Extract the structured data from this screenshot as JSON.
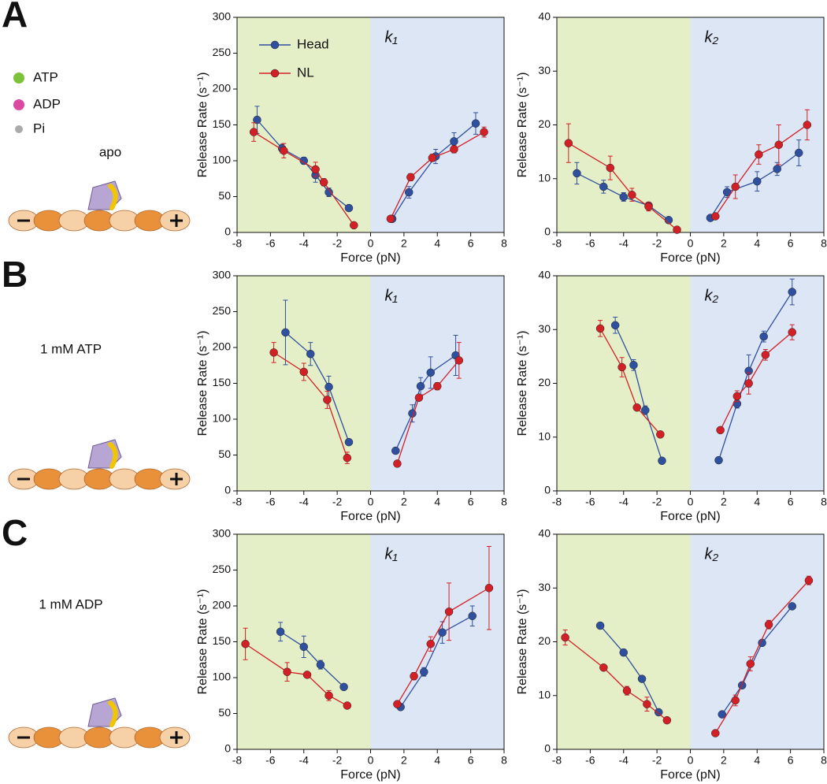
{
  "panels": [
    {
      "label": "A",
      "condition": "apo"
    },
    {
      "label": "B",
      "condition": "1 mM ATP"
    },
    {
      "label": "C",
      "condition": "1 mM ADP"
    }
  ],
  "key": [
    "ATP",
    "ADP",
    "Pi"
  ],
  "chart_data": [
    {
      "type": "line",
      "title": "k₁",
      "xlabel": "Force (pN)",
      "ylabel": "Release Rate (s⁻¹)",
      "xlim": [
        -8,
        8
      ],
      "xticks": [
        -8,
        -6,
        -4,
        -2,
        0,
        2,
        4,
        6,
        8
      ],
      "ylim": [
        0,
        300
      ],
      "yticks": [
        0,
        50,
        100,
        150,
        200,
        250,
        300
      ],
      "shade_colors": [
        "#e5efc7",
        "#dce6f4"
      ],
      "legend": "upper left",
      "series": [
        {
          "name": "Head",
          "color": "#2f4f9f",
          "x": [
            -6.8,
            -5.3,
            -4.0,
            -3.3,
            -2.5,
            -1.3,
            null,
            1.3,
            2.3,
            3.9,
            5.0,
            6.3
          ],
          "values": [
            157,
            117,
            100,
            80,
            56,
            34,
            null,
            19,
            56,
            106,
            127,
            152
          ],
          "errors": [
            19,
            6,
            5,
            10,
            6,
            2,
            null,
            2,
            8,
            10,
            12,
            15
          ]
        },
        {
          "name": "NL",
          "color": "#d31f26",
          "x": [
            -7.0,
            -5.2,
            -3.3,
            -2.8,
            -1.0,
            null,
            1.2,
            2.4,
            3.7,
            5.0,
            6.8
          ],
          "values": [
            140,
            114,
            88,
            70,
            10,
            null,
            19,
            77,
            104,
            116,
            140
          ],
          "errors": [
            13,
            10,
            10,
            5,
            2,
            null,
            2,
            5,
            5,
            5,
            7
          ]
        }
      ]
    },
    {
      "type": "line",
      "title": "k₂",
      "xlabel": "Force (pN)",
      "ylabel": "Release Rate (s⁻¹)",
      "xlim": [
        -8,
        8
      ],
      "xticks": [
        -8,
        -6,
        -4,
        -2,
        0,
        2,
        4,
        6,
        8
      ],
      "ylim": [
        0,
        40
      ],
      "yticks": [
        0,
        10,
        20,
        30,
        40
      ],
      "shade_colors": [
        "#e5efc7",
        "#dce6f4"
      ],
      "series": [
        {
          "color": "#2f4f9f",
          "x": [
            -6.8,
            -5.2,
            -4.0,
            -2.5,
            -1.3,
            null,
            1.2,
            2.2,
            4.0,
            5.2,
            6.5
          ],
          "values": [
            11,
            8.5,
            6.6,
            5,
            2.3,
            null,
            2.7,
            7.5,
            9.5,
            11.8,
            14.8
          ],
          "errors": [
            2,
            1.2,
            0.8,
            0.6,
            0.4,
            null,
            0.3,
            1,
            1.8,
            1.2,
            2.4
          ]
        },
        {
          "color": "#d31f26",
          "x": [
            -7.3,
            -4.8,
            -3.5,
            -2.5,
            -0.8,
            null,
            1.5,
            2.7,
            4.1,
            5.3,
            7.0
          ],
          "values": [
            16.6,
            12,
            7,
            4.8,
            0.5,
            null,
            3,
            8.5,
            14.5,
            16.3,
            20
          ],
          "errors": [
            3.6,
            2.2,
            1.2,
            0.8,
            0.3,
            null,
            0.3,
            2.2,
            1.8,
            3.7,
            2.8
          ]
        }
      ]
    },
    {
      "type": "line",
      "title": "k₁",
      "xlabel": "Force (pN)",
      "ylabel": "Release Rate (s⁻¹)",
      "xlim": [
        -8,
        8
      ],
      "xticks": [
        -8,
        -6,
        -4,
        -2,
        0,
        2,
        4,
        6,
        8
      ],
      "ylim": [
        0,
        300
      ],
      "yticks": [
        0,
        50,
        100,
        150,
        200,
        250,
        300
      ],
      "shade_colors": [
        "#e5efc7",
        "#dce6f4"
      ],
      "series": [
        {
          "color": "#2f4f9f",
          "x": [
            -5.1,
            -3.6,
            -2.5,
            -1.3,
            null,
            1.5,
            2.5,
            3.0,
            3.6,
            5.1
          ],
          "values": [
            221,
            191,
            145,
            68,
            null,
            56,
            108,
            146,
            165,
            189
          ],
          "errors": [
            45,
            16,
            15,
            3,
            null,
            3,
            12,
            12,
            22,
            28
          ]
        },
        {
          "color": "#d31f26",
          "x": [
            -5.8,
            -4.0,
            -2.6,
            -1.4,
            null,
            1.6,
            2.9,
            4.0,
            5.3
          ],
          "values": [
            193,
            166,
            127,
            46,
            null,
            38,
            130,
            146,
            182
          ],
          "errors": [
            14,
            12,
            12,
            8,
            null,
            3,
            4,
            5,
            25
          ]
        }
      ]
    },
    {
      "type": "line",
      "title": "k₂",
      "xlabel": "Force (pN)",
      "ylabel": "Release Rate (s⁻¹)",
      "xlim": [
        -8,
        8
      ],
      "xticks": [
        -8,
        -6,
        -4,
        -2,
        0,
        2,
        4,
        6,
        8
      ],
      "ylim": [
        0,
        40
      ],
      "yticks": [
        0,
        10,
        20,
        30,
        40
      ],
      "shade_colors": [
        "#e5efc7",
        "#dce6f4"
      ],
      "series": [
        {
          "color": "#2f4f9f",
          "x": [
            -4.5,
            -3.4,
            -2.7,
            -1.7,
            null,
            1.7,
            2.8,
            3.5,
            4.4,
            6.1
          ],
          "values": [
            30.8,
            23.4,
            15,
            5.6,
            null,
            5.7,
            16.2,
            22.3,
            28.7,
            37
          ],
          "errors": [
            1.5,
            1,
            0.8,
            0.3,
            null,
            0.3,
            0.8,
            3,
            1,
            2.4
          ]
        },
        {
          "color": "#d31f26",
          "x": [
            -5.4,
            -4.1,
            -3.2,
            -1.8,
            null,
            1.8,
            2.8,
            3.5,
            4.5,
            6.1
          ],
          "values": [
            30.2,
            23,
            15.5,
            10.5,
            null,
            11.3,
            17.6,
            20,
            25.3,
            29.5
          ],
          "errors": [
            1.5,
            1.8,
            0.4,
            0.3,
            null,
            0.3,
            1,
            2,
            1,
            1.4
          ]
        }
      ]
    },
    {
      "type": "line",
      "title": "k₁",
      "xlabel": "Force (pN)",
      "ylabel": "Release Rate (s⁻¹)",
      "xlim": [
        -8,
        8
      ],
      "xticks": [
        -8,
        -6,
        -4,
        -2,
        0,
        2,
        4,
        6,
        8
      ],
      "ylim": [
        0,
        300
      ],
      "yticks": [
        0,
        50,
        100,
        150,
        200,
        250,
        300
      ],
      "shade_colors": [
        "#e5efc7",
        "#dce6f4"
      ],
      "series": [
        {
          "color": "#2f4f9f",
          "x": [
            -5.4,
            -4.0,
            -3.0,
            -1.6,
            null,
            1.8,
            3.2,
            4.3,
            6.1
          ],
          "values": [
            164,
            143,
            118,
            87,
            null,
            59,
            108,
            163,
            186
          ],
          "errors": [
            13,
            15,
            6,
            2,
            null,
            2,
            6,
            15,
            14
          ]
        },
        {
          "color": "#d31f26",
          "x": [
            -7.5,
            -5.0,
            -3.8,
            -2.5,
            -1.4,
            null,
            1.6,
            2.6,
            3.6,
            4.7,
            7.1
          ],
          "values": [
            147,
            108,
            104,
            75,
            61,
            null,
            63,
            102,
            147,
            192,
            225
          ],
          "errors": [
            22,
            13,
            4,
            7,
            3,
            null,
            2,
            5,
            10,
            40,
            58
          ]
        }
      ]
    },
    {
      "type": "line",
      "title": "k₂",
      "xlabel": "Force (pN)",
      "ylabel": "Release Rate (s⁻¹)",
      "xlim": [
        -8,
        8
      ],
      "xticks": [
        -8,
        -6,
        -4,
        -2,
        0,
        2,
        4,
        6,
        8
      ],
      "ylim": [
        0,
        40
      ],
      "yticks": [
        0,
        10,
        20,
        30,
        40
      ],
      "shade_colors": [
        "#e5efc7",
        "#dce6f4"
      ],
      "series": [
        {
          "color": "#2f4f9f",
          "x": [
            -5.4,
            -4.0,
            -2.9,
            -1.9,
            null,
            1.9,
            3.1,
            4.3,
            6.1
          ],
          "values": [
            23,
            18,
            13.1,
            6.9,
            null,
            6.5,
            11.9,
            19.8,
            26.6
          ],
          "errors": [
            0.3,
            0.6,
            0.3,
            0.3,
            null,
            0.3,
            0.4,
            0.5,
            0.4
          ]
        },
        {
          "color": "#d31f26",
          "x": [
            -7.5,
            -5.2,
            -3.8,
            -2.6,
            -1.4,
            null,
            1.5,
            2.7,
            3.6,
            4.7,
            7.1
          ],
          "values": [
            20.8,
            15.2,
            10.9,
            8.4,
            5.4,
            null,
            3,
            9.1,
            15.9,
            23.2,
            31.4
          ],
          "errors": [
            1.4,
            0.5,
            0.8,
            1.3,
            0.5,
            null,
            0.2,
            1,
            1.3,
            0.8,
            0.8
          ]
        }
      ]
    }
  ]
}
